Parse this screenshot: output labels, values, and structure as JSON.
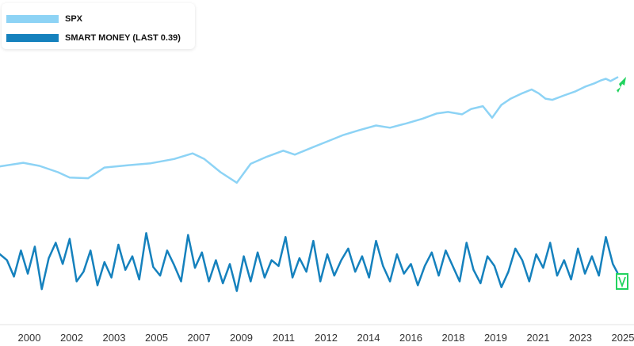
{
  "chart_data": {
    "type": "line",
    "title": "",
    "xlabel": "",
    "ylabel": "",
    "legend_position": "top-left",
    "grid": false,
    "x_tick_labels": [
      "2000",
      "2002",
      "2003",
      "2005",
      "2007",
      "2009",
      "2011",
      "2012",
      "2014",
      "2016",
      "2018",
      "2019",
      "2021",
      "2023",
      "2025"
    ],
    "xlim": [
      1999.0,
      2025.8
    ],
    "series": [
      {
        "name": "SPX",
        "color": "#8dd3f5",
        "x": [
          1999.0,
          2000.0,
          2000.7,
          2001.5,
          2002.0,
          2002.8,
          2003.5,
          2004.5,
          2005.5,
          2006.5,
          2007.3,
          2007.8,
          2008.5,
          2009.2,
          2009.8,
          2010.5,
          2011.2,
          2011.7,
          2012.5,
          2013.2,
          2013.8,
          2014.5,
          2015.2,
          2015.8,
          2016.5,
          2017.2,
          2017.8,
          2018.3,
          2018.9,
          2019.3,
          2019.8,
          2020.2,
          2020.6,
          2021.0,
          2021.5,
          2021.9,
          2022.2,
          2022.5,
          2022.8,
          2023.3,
          2023.8,
          2024.2,
          2024.6,
          2024.9,
          2025.1,
          2025.3,
          2025.6
        ],
        "values": [
          800,
          870,
          810,
          700,
          620,
          610,
          780,
          820,
          860,
          950,
          1080,
          950,
          700,
          550,
          850,
          1000,
          1150,
          1050,
          1250,
          1450,
          1650,
          1850,
          2050,
          1950,
          2150,
          2400,
          2700,
          2800,
          2650,
          3000,
          3200,
          2450,
          3300,
          3800,
          4300,
          4700,
          4300,
          3800,
          3700,
          4100,
          4500,
          5000,
          5400,
          5800,
          6000,
          5700,
          6200
        ]
      },
      {
        "name": "SMART MONEY (LAST 0.39)",
        "color": "#1581bd",
        "x": [
          1999.0,
          1999.3,
          1999.6,
          1999.9,
          2000.2,
          2000.5,
          2000.8,
          2001.1,
          2001.4,
          2001.7,
          2002.0,
          2002.3,
          2002.6,
          2002.9,
          2003.2,
          2003.5,
          2003.8,
          2004.1,
          2004.4,
          2004.7,
          2005.0,
          2005.3,
          2005.6,
          2005.9,
          2006.2,
          2006.5,
          2006.8,
          2007.1,
          2007.4,
          2007.7,
          2008.0,
          2008.3,
          2008.6,
          2008.9,
          2009.2,
          2009.5,
          2009.8,
          2010.1,
          2010.4,
          2010.7,
          2011.0,
          2011.3,
          2011.6,
          2011.9,
          2012.2,
          2012.5,
          2012.8,
          2013.1,
          2013.4,
          2013.7,
          2014.0,
          2014.3,
          2014.6,
          2014.9,
          2015.2,
          2015.5,
          2015.8,
          2016.1,
          2016.4,
          2016.7,
          2017.0,
          2017.3,
          2017.6,
          2017.9,
          2018.2,
          2018.5,
          2018.8,
          2019.1,
          2019.4,
          2019.7,
          2020.0,
          2020.3,
          2020.6,
          2020.9,
          2021.2,
          2021.5,
          2021.8,
          2022.1,
          2022.4,
          2022.7,
          2023.0,
          2023.3,
          2023.6,
          2023.9,
          2024.2,
          2024.5,
          2024.8,
          2025.1,
          2025.4,
          2025.6
        ],
        "values": [
          0.58,
          0.52,
          0.35,
          0.62,
          0.38,
          0.66,
          0.22,
          0.54,
          0.7,
          0.48,
          0.74,
          0.3,
          0.4,
          0.62,
          0.26,
          0.5,
          0.34,
          0.68,
          0.42,
          0.56,
          0.32,
          0.8,
          0.45,
          0.36,
          0.62,
          0.47,
          0.3,
          0.78,
          0.44,
          0.6,
          0.3,
          0.52,
          0.28,
          0.48,
          0.2,
          0.56,
          0.3,
          0.6,
          0.34,
          0.52,
          0.46,
          0.76,
          0.34,
          0.54,
          0.4,
          0.72,
          0.3,
          0.58,
          0.36,
          0.52,
          0.64,
          0.4,
          0.56,
          0.34,
          0.72,
          0.46,
          0.3,
          0.58,
          0.38,
          0.48,
          0.26,
          0.46,
          0.6,
          0.36,
          0.62,
          0.46,
          0.3,
          0.7,
          0.42,
          0.28,
          0.56,
          0.46,
          0.24,
          0.4,
          0.64,
          0.52,
          0.3,
          0.58,
          0.44,
          0.7,
          0.36,
          0.52,
          0.32,
          0.64,
          0.38,
          0.56,
          0.36,
          0.76,
          0.48,
          0.39
        ]
      }
    ]
  }
}
